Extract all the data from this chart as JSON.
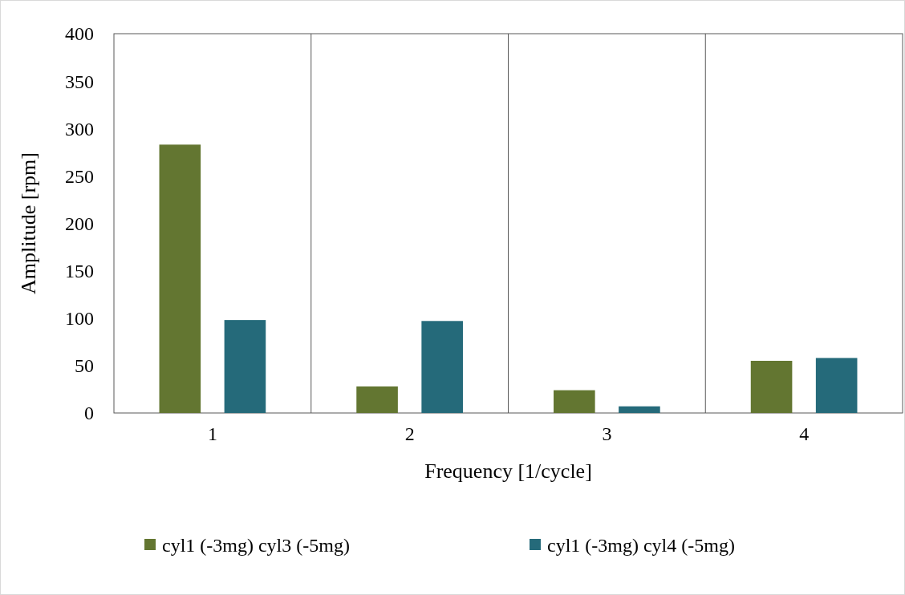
{
  "chart_data": {
    "type": "bar",
    "xlabel": "Frequency [1/cycle]",
    "ylabel": "Amplitude [rpm]",
    "categories": [
      "1",
      "2",
      "3",
      "4"
    ],
    "series": [
      {
        "name": "cyl1 (-3mg) cyl3 (-5mg)",
        "color": "#637631",
        "values": [
          283,
          28,
          24,
          55
        ]
      },
      {
        "name": "cyl1 (-3mg) cyl4 (-5mg)",
        "color": "#256a7a",
        "values": [
          98,
          97,
          7,
          58
        ]
      }
    ],
    "ylim": [
      0,
      400
    ],
    "yticks": [
      0,
      50,
      100,
      150,
      200,
      250,
      300,
      350,
      400
    ],
    "grid": "x",
    "legend": "bottom"
  }
}
